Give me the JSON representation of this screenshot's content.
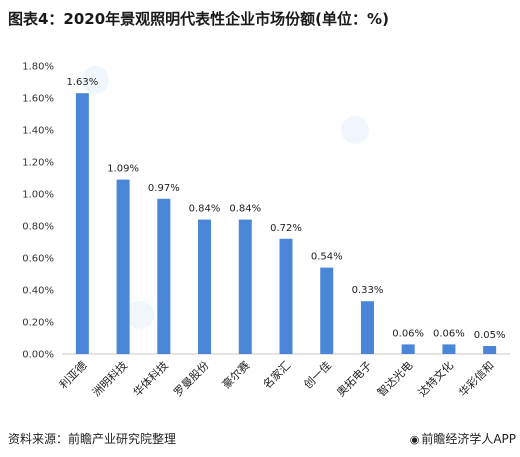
{
  "title": "图表4：2020年景观照明代表性企业市场份额(单位：%)",
  "source": "资料来源：前瞻产业研究院整理",
  "brand": "前瞻经济学人APP",
  "bar_color": "#4a86d8",
  "chart_data": {
    "type": "bar",
    "title": "图表4：2020年景观照明代表性企业市场份额(单位：%)",
    "categories": [
      "利亚德",
      "洲明科技",
      "华体科技",
      "罗曼股份",
      "豪尔赛",
      "名家汇",
      "创一佳",
      "奥拓电子",
      "智达光电",
      "达特文化",
      "华彩信和"
    ],
    "values": [
      1.63,
      1.09,
      0.97,
      0.84,
      0.84,
      0.72,
      0.54,
      0.33,
      0.06,
      0.06,
      0.05
    ],
    "data_labels": [
      "1.63%",
      "1.09%",
      "0.97%",
      "0.84%",
      "0.84%",
      "0.72%",
      "0.54%",
      "0.33%",
      "0.06%",
      "0.06%",
      "0.05%"
    ],
    "yticks": [
      "0.00%",
      "0.20%",
      "0.40%",
      "0.60%",
      "0.80%",
      "1.00%",
      "1.20%",
      "1.40%",
      "1.60%",
      "1.80%"
    ],
    "ylim": [
      0,
      1.8
    ],
    "grid": false,
    "legend": "none"
  }
}
